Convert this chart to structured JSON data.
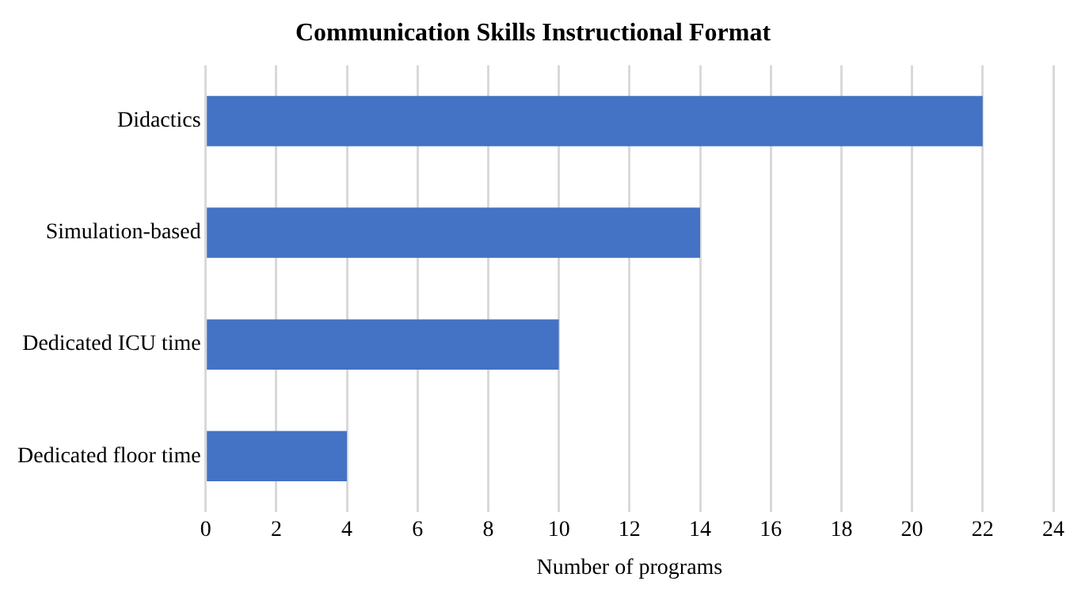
{
  "chart_data": {
    "type": "bar",
    "orientation": "horizontal",
    "title": "Communication Skills Instructional Format",
    "xlabel": "Number of programs",
    "categories": [
      "Didactics",
      "Simulation-based",
      "Dedicated ICU time",
      "Dedicated floor time"
    ],
    "values": [
      22,
      14,
      10,
      4
    ],
    "color": "#4472c4",
    "xlim": [
      0,
      24
    ],
    "xticks": [
      0,
      2,
      4,
      6,
      8,
      10,
      12,
      14,
      16,
      18,
      20,
      22,
      24
    ],
    "grid": "x",
    "legend": false
  }
}
